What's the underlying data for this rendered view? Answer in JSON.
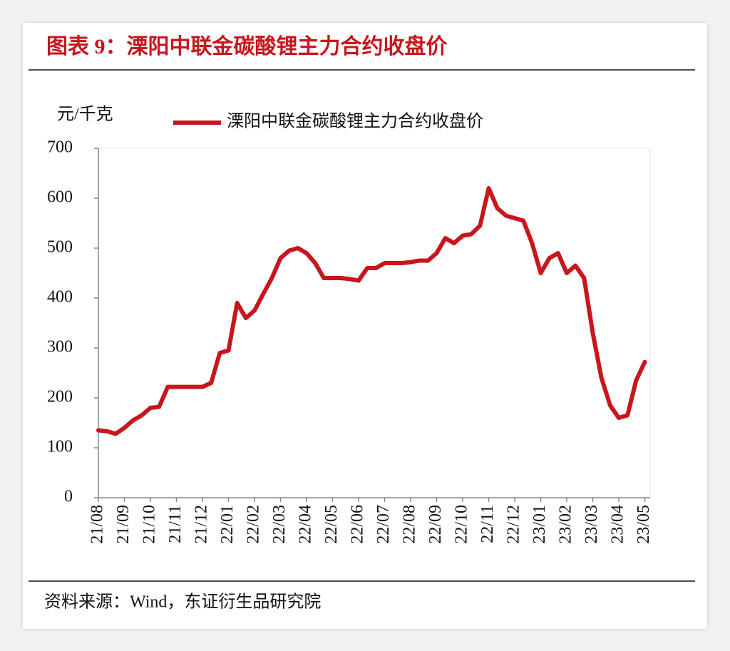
{
  "chart_data": {
    "type": "line",
    "title": "图表 9：溧阳中联金碳酸锂主力合约收盘价",
    "y_label": "元/千克",
    "source": "资料来源：Wind，东证衍生品研究院",
    "categories": [
      "21/08",
      null,
      null,
      "21/09",
      null,
      null,
      "21/10",
      null,
      null,
      "21/11",
      null,
      null,
      "21/12",
      null,
      null,
      "22/01",
      null,
      null,
      "22/02",
      null,
      null,
      "22/03",
      null,
      null,
      "22/04",
      null,
      null,
      "22/05",
      null,
      null,
      "22/06",
      null,
      null,
      "22/07",
      null,
      null,
      "22/08",
      null,
      null,
      "22/09",
      null,
      null,
      "22/10",
      null,
      null,
      "22/11",
      null,
      null,
      "22/12",
      null,
      null,
      "23/01",
      null,
      null,
      "23/02",
      null,
      null,
      "23/03",
      null,
      null,
      "23/04",
      null,
      null,
      "23/05"
    ],
    "series": [
      {
        "name": "溧阳中联金碳酸锂主力合约收盘价",
        "color": "#c8161d",
        "values": [
          135,
          133,
          128,
          140,
          155,
          165,
          180,
          182,
          222,
          222,
          222,
          222,
          222,
          230,
          290,
          295,
          390,
          360,
          375,
          408,
          440,
          480,
          495,
          500,
          490,
          470,
          440,
          440,
          440,
          438,
          435,
          460,
          460,
          470,
          470,
          470,
          472,
          475,
          475,
          490,
          520,
          510,
          525,
          528,
          545,
          620,
          580,
          565,
          560,
          555,
          510,
          450,
          480,
          490,
          450,
          465,
          440,
          330,
          240,
          185,
          160,
          165,
          235,
          272
        ]
      }
    ],
    "ylim": [
      0,
      700
    ],
    "yticks": [
      0,
      100,
      200,
      300,
      400,
      500,
      600,
      700
    ],
    "grid": false,
    "legend": "top"
  }
}
